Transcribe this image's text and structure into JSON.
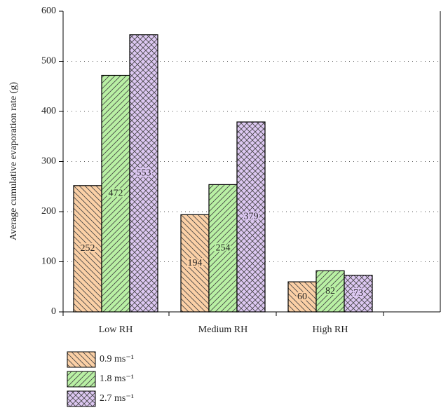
{
  "chart_data": {
    "type": "bar",
    "y_label": "Average cumulative evaporation rate (g)",
    "categories": [
      "Low RH",
      "Medium RH",
      "High RH"
    ],
    "series": [
      {
        "name": "0.9 ms⁻¹",
        "color": "#fbd0a6",
        "hatch": "backslash",
        "values": [
          252,
          194,
          60
        ]
      },
      {
        "name": "1.8 ms⁻¹",
        "color": "#b9f0a4",
        "hatch": "slash",
        "values": [
          472,
          254,
          82
        ]
      },
      {
        "name": "2.7 ms⁻¹",
        "color": "#ddc8f2",
        "hatch": "cross",
        "values": [
          553,
          379,
          73
        ]
      }
    ],
    "ylim": [
      0,
      600
    ],
    "yticks": [
      0,
      100,
      200,
      300,
      400,
      500,
      600
    ],
    "grid": true
  }
}
